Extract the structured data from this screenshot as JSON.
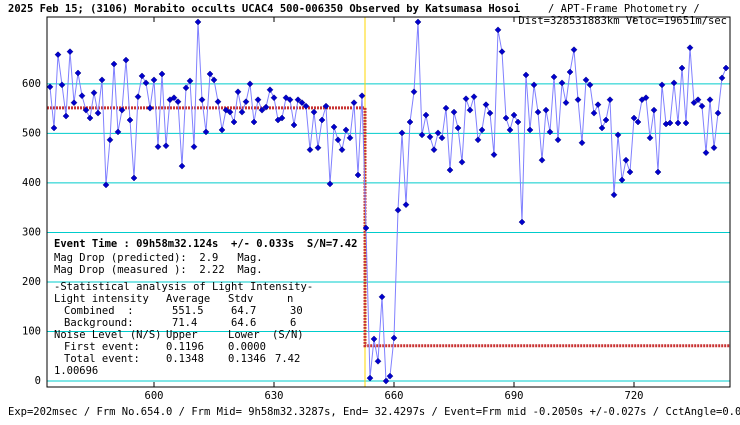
{
  "chart_data": {
    "type": "line",
    "title": "2025 Feb 15; (3106) Morabito occults UCAC4 500-006350 Observed by Katsumasa Hosoi",
    "subtitle": "/ APT-Frame Photometry /",
    "subtitle2": "Dist=328531883km Veloc=19651m/sec",
    "footer": "Exp=202msec / Frm No.654.0 / Frm Mid= 9h58m32.3287s, End= 32.4297s / Event=Frm mid -0.2050s +/-0.027s / CctAngle=0.0deg",
    "xlim": [
      573.25,
      744
    ],
    "xticks": [
      600,
      630,
      660,
      690,
      720
    ],
    "ylim": [
      -12,
      735
    ],
    "yticks": [
      0,
      100,
      200,
      300,
      400,
      500,
      600
    ],
    "grid": true,
    "grid_color": "#00cccc",
    "event_x": 652.75,
    "event_color": "#ffd700",
    "fit_color": "#c83232",
    "series": [
      {
        "color": "#0000cc",
        "line_color": "#8080ff",
        "x": [
          574,
          575,
          576,
          577,
          578,
          579,
          580,
          581,
          582,
          583,
          584,
          585,
          586,
          587,
          588,
          589,
          590,
          591,
          592,
          593,
          594,
          595,
          596,
          597,
          598,
          599,
          600,
          601,
          602,
          603,
          604,
          605,
          606,
          607,
          608,
          609,
          610,
          611,
          612,
          613,
          614,
          615,
          616,
          617,
          618,
          619,
          620,
          621,
          622,
          623,
          624,
          625,
          626,
          627,
          628,
          629,
          630,
          631,
          632,
          633,
          634,
          635,
          636,
          637,
          638,
          639,
          640,
          641,
          642,
          643,
          644,
          645,
          646,
          647,
          648,
          649,
          650,
          651,
          652,
          653,
          654,
          655,
          656,
          657,
          658,
          659,
          660,
          661,
          662,
          663,
          664,
          665,
          666,
          667,
          668,
          669,
          670,
          671,
          672,
          673,
          674,
          675,
          676,
          677,
          678,
          679,
          680,
          681,
          682,
          683,
          684,
          685,
          686,
          687,
          688,
          689,
          690,
          691,
          692,
          693,
          694,
          695,
          696,
          697,
          698,
          699,
          700,
          701,
          702,
          703,
          704,
          705,
          706,
          707,
          708,
          709,
          710,
          711,
          712,
          713,
          714,
          715,
          716,
          717,
          718,
          719,
          720,
          721,
          722,
          723,
          724,
          725,
          726,
          727,
          728,
          729,
          730,
          731,
          732,
          733,
          734,
          735,
          736,
          737,
          738,
          739,
          740,
          741,
          742,
          743
        ],
        "values": [
          594,
          511,
          659,
          598,
          535,
          665,
          562,
          622,
          576,
          547,
          531,
          582,
          541,
          608,
          396,
          487,
          640,
          503,
          547,
          648,
          527,
          410,
          574,
          616,
          602,
          551,
          608,
          473,
          620,
          475,
          568,
          572,
          564,
          434,
          592,
          606,
          473,
          725,
          568,
          503,
          620,
          608,
          564,
          507,
          547,
          543,
          523,
          584,
          543,
          564,
          600,
          523,
          568,
          547,
          553,
          588,
          572,
          527,
          531,
          572,
          568,
          517,
          568,
          562,
          555,
          467,
          543,
          471,
          527,
          555,
          398,
          513,
          487,
          467,
          507,
          491,
          562,
          416,
          576,
          309,
          6,
          85,
          40,
          170,
          0,
          10,
          87,
          345,
          501,
          356,
          523,
          584,
          725,
          497,
          537,
          493,
          467,
          501,
          491,
          551,
          426,
          543,
          511,
          442,
          570,
          547,
          574,
          487,
          507,
          558,
          541,
          457,
          709,
          665,
          531,
          507,
          537,
          523,
          321,
          618,
          507,
          598,
          543,
          446,
          547,
          503,
          614,
          487,
          602,
          562,
          624,
          669,
          568,
          481,
          608,
          598,
          541,
          558,
          511,
          527,
          568,
          376,
          497,
          406,
          446,
          422,
          531,
          523,
          568,
          572,
          491,
          547,
          422,
          598,
          519,
          521,
          602,
          521,
          632,
          521,
          673,
          562,
          568,
          555,
          461,
          568,
          471,
          541,
          612,
          632
        ]
      }
    ],
    "event_line": "Event Time : 09h58m32.124s  +/- 0.033s  S/N=7.42",
    "mag_lines": [
      "Mag Drop (predicted):  2.9   Mag.",
      "Mag Drop (measured ):  2.22  Mag."
    ],
    "stats": {
      "title": "-Statistical analysis of Light Intensity-",
      "header": [
        "Light intensity",
        "Average",
        "Stdv",
        "n"
      ],
      "rows": [
        [
          "Combined  :",
          551.5,
          64.7,
          30
        ],
        [
          "Background:",
          71.4,
          64.6,
          6
        ]
      ],
      "noise_header": [
        "Noise Level (N/S)",
        "Upper",
        "Lower",
        "(S/N)"
      ],
      "noise_rows": [
        [
          "First event:",
          0.1196,
          "0.0000"
        ],
        [
          "Total event:",
          0.1348,
          0.1346,
          7.42
        ]
      ],
      "ratio": 1.00696
    }
  }
}
